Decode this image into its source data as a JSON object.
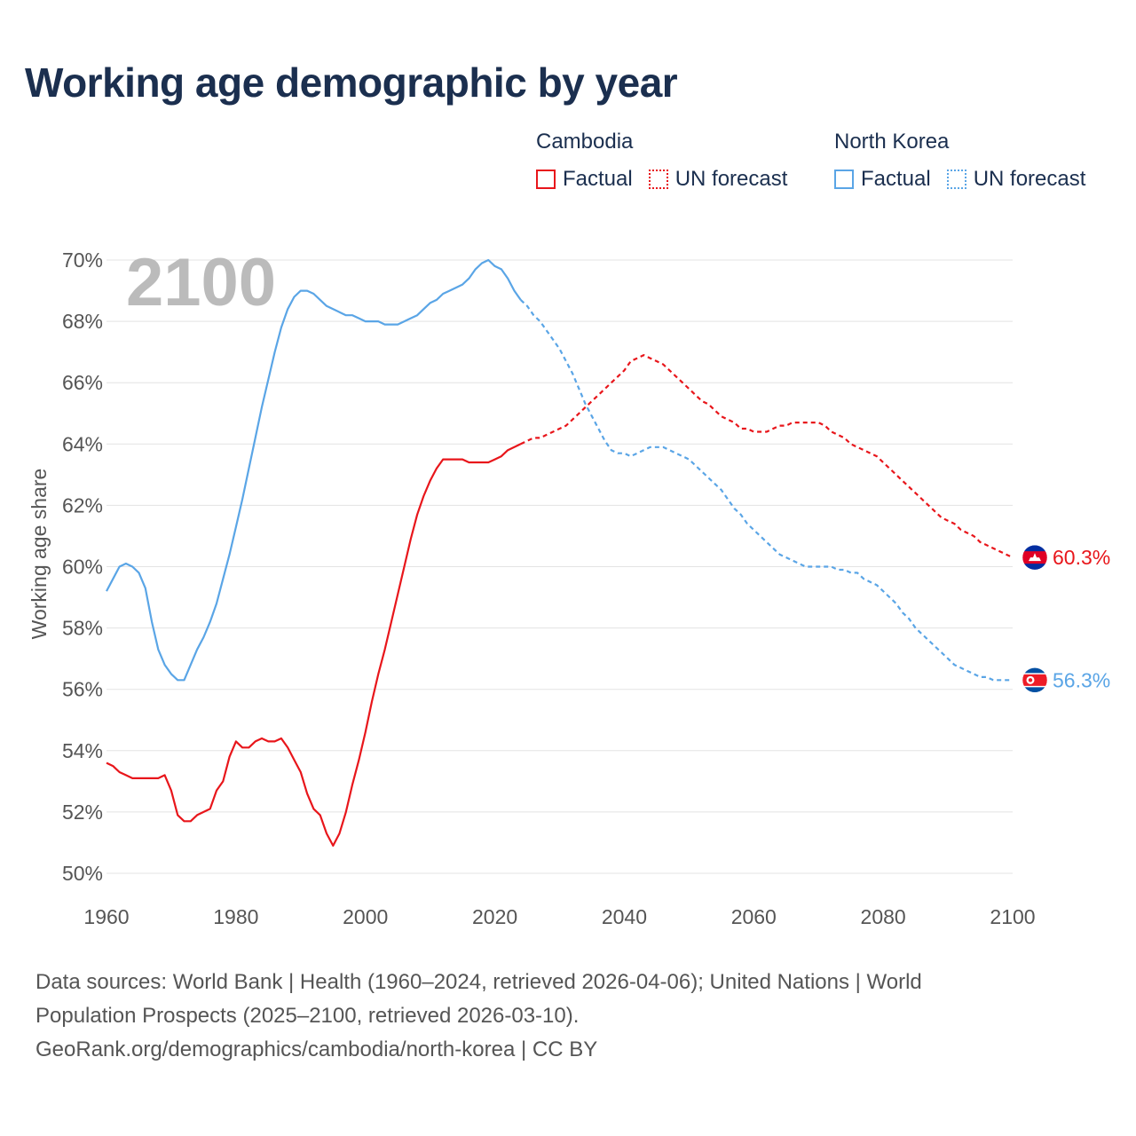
{
  "title": "Working age demographic by year",
  "legend": {
    "groups": [
      {
        "name": "Cambodia",
        "color": "#e8161b",
        "factual_label": "Factual",
        "forecast_label": "UN forecast"
      },
      {
        "name": "North Korea",
        "color": "#5aa5e6",
        "factual_label": "Factual",
        "forecast_label": "UN forecast"
      }
    ]
  },
  "year_watermark": "2100",
  "footer": {
    "line1": "Data sources: World Bank | Health (1960–2024, retrieved 2026-04-06); United Nations | World",
    "line2": "Population Prospects (2025–2100, retrieved 2026-03-10).",
    "line3": "GeoRank.org/demographics/cambodia/north-korea | CC BY"
  },
  "chart_data": {
    "type": "line",
    "title": "Working age demographic by year",
    "xlabel": "",
    "ylabel": "Working age share",
    "xlim": [
      1960,
      2100
    ],
    "ylim": [
      50,
      70
    ],
    "x_ticks": [
      1960,
      1980,
      2000,
      2020,
      2040,
      2060,
      2080,
      2100
    ],
    "y_ticks": [
      50,
      52,
      54,
      56,
      58,
      60,
      62,
      64,
      66,
      68,
      70
    ],
    "y_tick_format": "%",
    "grid": true,
    "factual_end_year": 2024,
    "series": [
      {
        "name": "Cambodia",
        "color": "#e8161b",
        "end_label": "60.3%",
        "points": [
          [
            1960,
            53.6
          ],
          [
            1961,
            53.5
          ],
          [
            1962,
            53.3
          ],
          [
            1963,
            53.2
          ],
          [
            1964,
            53.1
          ],
          [
            1965,
            53.1
          ],
          [
            1966,
            53.1
          ],
          [
            1967,
            53.1
          ],
          [
            1968,
            53.1
          ],
          [
            1969,
            53.2
          ],
          [
            1970,
            52.7
          ],
          [
            1971,
            51.9
          ],
          [
            1972,
            51.7
          ],
          [
            1973,
            51.7
          ],
          [
            1974,
            51.9
          ],
          [
            1975,
            52.0
          ],
          [
            1976,
            52.1
          ],
          [
            1977,
            52.7
          ],
          [
            1978,
            53.0
          ],
          [
            1979,
            53.8
          ],
          [
            1980,
            54.3
          ],
          [
            1981,
            54.1
          ],
          [
            1982,
            54.1
          ],
          [
            1983,
            54.3
          ],
          [
            1984,
            54.4
          ],
          [
            1985,
            54.3
          ],
          [
            1986,
            54.3
          ],
          [
            1987,
            54.4
          ],
          [
            1988,
            54.1
          ],
          [
            1989,
            53.7
          ],
          [
            1990,
            53.3
          ],
          [
            1991,
            52.6
          ],
          [
            1992,
            52.1
          ],
          [
            1993,
            51.9
          ],
          [
            1994,
            51.3
          ],
          [
            1995,
            50.9
          ],
          [
            1996,
            51.3
          ],
          [
            1997,
            52.0
          ],
          [
            1998,
            52.9
          ],
          [
            1999,
            53.7
          ],
          [
            2000,
            54.6
          ],
          [
            2001,
            55.6
          ],
          [
            2002,
            56.5
          ],
          [
            2003,
            57.3
          ],
          [
            2004,
            58.2
          ],
          [
            2005,
            59.1
          ],
          [
            2006,
            60.0
          ],
          [
            2007,
            60.9
          ],
          [
            2008,
            61.7
          ],
          [
            2009,
            62.3
          ],
          [
            2010,
            62.8
          ],
          [
            2011,
            63.2
          ],
          [
            2012,
            63.5
          ],
          [
            2013,
            63.5
          ],
          [
            2014,
            63.5
          ],
          [
            2015,
            63.5
          ],
          [
            2016,
            63.4
          ],
          [
            2017,
            63.4
          ],
          [
            2018,
            63.4
          ],
          [
            2019,
            63.4
          ],
          [
            2020,
            63.5
          ],
          [
            2021,
            63.6
          ],
          [
            2022,
            63.8
          ],
          [
            2023,
            63.9
          ],
          [
            2024,
            64.0
          ],
          [
            2025,
            64.1
          ],
          [
            2026,
            64.2
          ],
          [
            2027,
            64.2
          ],
          [
            2028,
            64.3
          ],
          [
            2029,
            64.4
          ],
          [
            2030,
            64.5
          ],
          [
            2031,
            64.6
          ],
          [
            2032,
            64.8
          ],
          [
            2033,
            65.0
          ],
          [
            2034,
            65.2
          ],
          [
            2035,
            65.4
          ],
          [
            2036,
            65.6
          ],
          [
            2037,
            65.8
          ],
          [
            2038,
            66.0
          ],
          [
            2039,
            66.2
          ],
          [
            2040,
            66.4
          ],
          [
            2041,
            66.7
          ],
          [
            2042,
            66.8
          ],
          [
            2043,
            66.9
          ],
          [
            2044,
            66.8
          ],
          [
            2045,
            66.7
          ],
          [
            2046,
            66.6
          ],
          [
            2047,
            66.4
          ],
          [
            2048,
            66.2
          ],
          [
            2049,
            66.0
          ],
          [
            2050,
            65.8
          ],
          [
            2051,
            65.6
          ],
          [
            2052,
            65.4
          ],
          [
            2053,
            65.3
          ],
          [
            2054,
            65.1
          ],
          [
            2055,
            64.9
          ],
          [
            2056,
            64.8
          ],
          [
            2057,
            64.7
          ],
          [
            2058,
            64.5
          ],
          [
            2059,
            64.5
          ],
          [
            2060,
            64.4
          ],
          [
            2061,
            64.4
          ],
          [
            2062,
            64.4
          ],
          [
            2063,
            64.5
          ],
          [
            2064,
            64.6
          ],
          [
            2065,
            64.6
          ],
          [
            2066,
            64.7
          ],
          [
            2067,
            64.7
          ],
          [
            2068,
            64.7
          ],
          [
            2069,
            64.7
          ],
          [
            2070,
            64.7
          ],
          [
            2071,
            64.6
          ],
          [
            2072,
            64.4
          ],
          [
            2073,
            64.3
          ],
          [
            2074,
            64.2
          ],
          [
            2075,
            64.0
          ],
          [
            2076,
            63.9
          ],
          [
            2077,
            63.8
          ],
          [
            2078,
            63.7
          ],
          [
            2079,
            63.6
          ],
          [
            2080,
            63.4
          ],
          [
            2081,
            63.2
          ],
          [
            2082,
            63.0
          ],
          [
            2083,
            62.8
          ],
          [
            2084,
            62.6
          ],
          [
            2085,
            62.4
          ],
          [
            2086,
            62.2
          ],
          [
            2087,
            62.0
          ],
          [
            2088,
            61.8
          ],
          [
            2089,
            61.6
          ],
          [
            2090,
            61.5
          ],
          [
            2091,
            61.4
          ],
          [
            2092,
            61.2
          ],
          [
            2093,
            61.1
          ],
          [
            2094,
            61.0
          ],
          [
            2095,
            60.8
          ],
          [
            2096,
            60.7
          ],
          [
            2097,
            60.6
          ],
          [
            2098,
            60.5
          ],
          [
            2099,
            60.4
          ],
          [
            2100,
            60.3
          ]
        ]
      },
      {
        "name": "North Korea",
        "color": "#5aa5e6",
        "end_label": "56.3%",
        "points": [
          [
            1960,
            59.2
          ],
          [
            1961,
            59.6
          ],
          [
            1962,
            60.0
          ],
          [
            1963,
            60.1
          ],
          [
            1964,
            60.0
          ],
          [
            1965,
            59.8
          ],
          [
            1966,
            59.3
          ],
          [
            1967,
            58.2
          ],
          [
            1968,
            57.3
          ],
          [
            1969,
            56.8
          ],
          [
            1970,
            56.5
          ],
          [
            1971,
            56.3
          ],
          [
            1972,
            56.3
          ],
          [
            1973,
            56.8
          ],
          [
            1974,
            57.3
          ],
          [
            1975,
            57.7
          ],
          [
            1976,
            58.2
          ],
          [
            1977,
            58.8
          ],
          [
            1978,
            59.6
          ],
          [
            1979,
            60.4
          ],
          [
            1980,
            61.3
          ],
          [
            1981,
            62.2
          ],
          [
            1982,
            63.2
          ],
          [
            1983,
            64.2
          ],
          [
            1984,
            65.2
          ],
          [
            1985,
            66.1
          ],
          [
            1986,
            67.0
          ],
          [
            1987,
            67.8
          ],
          [
            1988,
            68.4
          ],
          [
            1989,
            68.8
          ],
          [
            1990,
            69.0
          ],
          [
            1991,
            69.0
          ],
          [
            1992,
            68.9
          ],
          [
            1993,
            68.7
          ],
          [
            1994,
            68.5
          ],
          [
            1995,
            68.4
          ],
          [
            1996,
            68.3
          ],
          [
            1997,
            68.2
          ],
          [
            1998,
            68.2
          ],
          [
            1999,
            68.1
          ],
          [
            2000,
            68.0
          ],
          [
            2001,
            68.0
          ],
          [
            2002,
            68.0
          ],
          [
            2003,
            67.9
          ],
          [
            2004,
            67.9
          ],
          [
            2005,
            67.9
          ],
          [
            2006,
            68.0
          ],
          [
            2007,
            68.1
          ],
          [
            2008,
            68.2
          ],
          [
            2009,
            68.4
          ],
          [
            2010,
            68.6
          ],
          [
            2011,
            68.7
          ],
          [
            2012,
            68.9
          ],
          [
            2013,
            69.0
          ],
          [
            2014,
            69.1
          ],
          [
            2015,
            69.2
          ],
          [
            2016,
            69.4
          ],
          [
            2017,
            69.7
          ],
          [
            2018,
            69.9
          ],
          [
            2019,
            70.0
          ],
          [
            2020,
            69.8
          ],
          [
            2021,
            69.7
          ],
          [
            2022,
            69.4
          ],
          [
            2023,
            69.0
          ],
          [
            2024,
            68.7
          ],
          [
            2025,
            68.5
          ],
          [
            2026,
            68.2
          ],
          [
            2027,
            68.0
          ],
          [
            2028,
            67.7
          ],
          [
            2029,
            67.4
          ],
          [
            2030,
            67.1
          ],
          [
            2031,
            66.7
          ],
          [
            2032,
            66.3
          ],
          [
            2033,
            65.8
          ],
          [
            2034,
            65.3
          ],
          [
            2035,
            64.9
          ],
          [
            2036,
            64.5
          ],
          [
            2037,
            64.1
          ],
          [
            2038,
            63.8
          ],
          [
            2039,
            63.7
          ],
          [
            2040,
            63.7
          ],
          [
            2041,
            63.6
          ],
          [
            2042,
            63.7
          ],
          [
            2043,
            63.8
          ],
          [
            2044,
            63.9
          ],
          [
            2045,
            63.9
          ],
          [
            2046,
            63.9
          ],
          [
            2047,
            63.8
          ],
          [
            2048,
            63.7
          ],
          [
            2049,
            63.6
          ],
          [
            2050,
            63.5
          ],
          [
            2051,
            63.3
          ],
          [
            2052,
            63.1
          ],
          [
            2053,
            62.9
          ],
          [
            2054,
            62.7
          ],
          [
            2055,
            62.5
          ],
          [
            2056,
            62.2
          ],
          [
            2057,
            61.9
          ],
          [
            2058,
            61.7
          ],
          [
            2059,
            61.4
          ],
          [
            2060,
            61.2
          ],
          [
            2061,
            61.0
          ],
          [
            2062,
            60.8
          ],
          [
            2063,
            60.6
          ],
          [
            2064,
            60.4
          ],
          [
            2065,
            60.3
          ],
          [
            2066,
            60.2
          ],
          [
            2067,
            60.1
          ],
          [
            2068,
            60.0
          ],
          [
            2069,
            60.0
          ],
          [
            2070,
            60.0
          ],
          [
            2071,
            60.0
          ],
          [
            2072,
            60.0
          ],
          [
            2073,
            59.9
          ],
          [
            2074,
            59.9
          ],
          [
            2075,
            59.8
          ],
          [
            2076,
            59.8
          ],
          [
            2077,
            59.6
          ],
          [
            2078,
            59.5
          ],
          [
            2079,
            59.4
          ],
          [
            2080,
            59.2
          ],
          [
            2081,
            59.0
          ],
          [
            2082,
            58.8
          ],
          [
            2083,
            58.5
          ],
          [
            2084,
            58.3
          ],
          [
            2085,
            58.0
          ],
          [
            2086,
            57.8
          ],
          [
            2087,
            57.6
          ],
          [
            2088,
            57.4
          ],
          [
            2089,
            57.2
          ],
          [
            2090,
            57.0
          ],
          [
            2091,
            56.8
          ],
          [
            2092,
            56.7
          ],
          [
            2093,
            56.6
          ],
          [
            2094,
            56.5
          ],
          [
            2095,
            56.4
          ],
          [
            2096,
            56.4
          ],
          [
            2097,
            56.3
          ],
          [
            2098,
            56.3
          ],
          [
            2099,
            56.3
          ],
          [
            2100,
            56.3
          ]
        ]
      }
    ]
  }
}
